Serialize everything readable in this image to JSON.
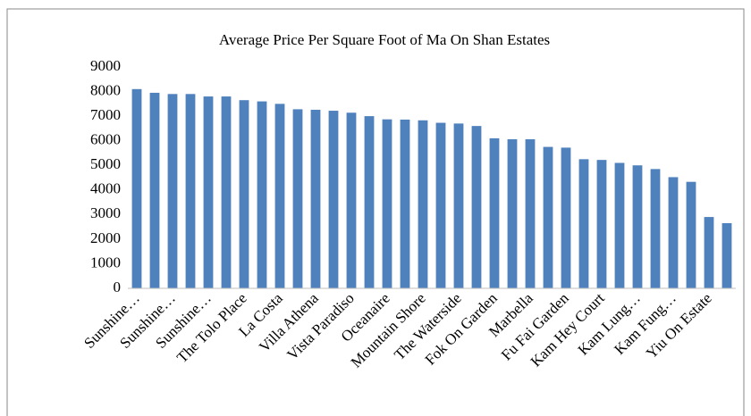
{
  "chart_data": {
    "type": "bar",
    "title": "Average Price Per Square Foot of Ma On Shan Estates",
    "categories": [
      "Sunshine…",
      null,
      "Sunshine…",
      null,
      "Sunshine…",
      null,
      "The Tolo Place",
      null,
      "La Costa",
      null,
      "Villa Athena",
      null,
      "Vista Paradiso",
      null,
      "Oceanaire",
      null,
      "Mountain Shore",
      null,
      "The Waterside",
      null,
      "Fok On Garden",
      null,
      "Marbella",
      null,
      "Fu Fai Garden",
      null,
      "Kam Hey Court",
      null,
      "Kam Lung…",
      null,
      "Kam Fung…",
      null,
      "Yiu On Estate",
      null
    ],
    "values": [
      8100,
      7950,
      7900,
      7900,
      7800,
      7800,
      7650,
      7600,
      7500,
      7280,
      7260,
      7220,
      7140,
      7000,
      6870,
      6860,
      6830,
      6730,
      6700,
      6600,
      6100,
      6060,
      6060,
      5750,
      5720,
      5250,
      5220,
      5100,
      5000,
      4850,
      4520,
      4330,
      2900,
      2650
    ],
    "color": "#4f81bd",
    "ylim": [
      0,
      9000
    ],
    "yticks": [
      0,
      1000,
      2000,
      3000,
      4000,
      5000,
      6000,
      7000,
      8000,
      9000
    ],
    "grid": false
  }
}
